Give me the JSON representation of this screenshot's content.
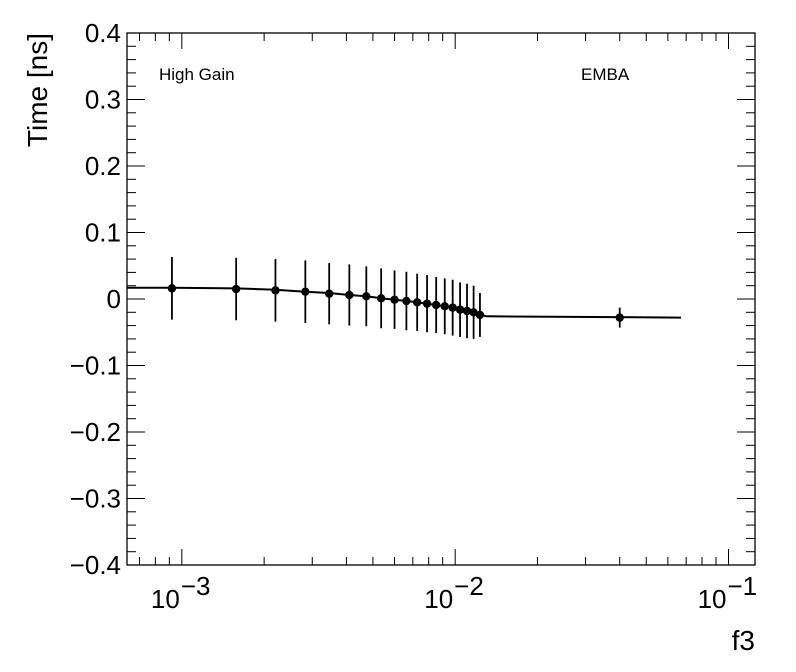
{
  "chart_data": {
    "type": "scatter",
    "xlabel": "f3",
    "ylabel": "Time [ns]",
    "xscale": "log",
    "xlim": [
      0.00063,
      0.125
    ],
    "ylim": [
      -0.4,
      0.4
    ],
    "grid": false,
    "annotations": [
      "High Gain",
      "EMBA"
    ],
    "x_tick_labels": [
      {
        "base": "10",
        "exp": "−3",
        "value": 0.001
      },
      {
        "base": "10",
        "exp": "−2",
        "value": 0.01
      },
      {
        "base": "10",
        "exp": "−1",
        "value": 0.1
      }
    ],
    "y_tick_labels": [
      "0.4",
      "0.3",
      "0.2",
      "0.1",
      "0",
      "−0.1",
      "−0.2",
      "−0.3",
      "−0.4"
    ],
    "y_tick_values": [
      0.4,
      0.3,
      0.2,
      0.1,
      0,
      -0.1,
      -0.2,
      -0.3,
      -0.4
    ],
    "points": [
      {
        "x": 0.00092,
        "y": 0.016,
        "err": 0.047
      },
      {
        "x": 0.00158,
        "y": 0.015,
        "err": 0.047
      },
      {
        "x": 0.0022,
        "y": 0.013,
        "err": 0.047
      },
      {
        "x": 0.00283,
        "y": 0.011,
        "err": 0.047
      },
      {
        "x": 0.00346,
        "y": 0.008,
        "err": 0.046
      },
      {
        "x": 0.0041,
        "y": 0.006,
        "err": 0.046
      },
      {
        "x": 0.00473,
        "y": 0.004,
        "err": 0.045
      },
      {
        "x": 0.00536,
        "y": 0.001,
        "err": 0.045
      },
      {
        "x": 0.006,
        "y": -0.001,
        "err": 0.044
      },
      {
        "x": 0.00663,
        "y": -0.003,
        "err": 0.044
      },
      {
        "x": 0.00726,
        "y": -0.005,
        "err": 0.043
      },
      {
        "x": 0.00789,
        "y": -0.007,
        "err": 0.043
      },
      {
        "x": 0.00852,
        "y": -0.009,
        "err": 0.042
      },
      {
        "x": 0.00916,
        "y": -0.011,
        "err": 0.042
      },
      {
        "x": 0.00979,
        "y": -0.013,
        "err": 0.042
      },
      {
        "x": 0.01042,
        "y": -0.016,
        "err": 0.041
      },
      {
        "x": 0.01105,
        "y": -0.018,
        "err": 0.041
      },
      {
        "x": 0.01168,
        "y": -0.02,
        "err": 0.04
      },
      {
        "x": 0.01232,
        "y": -0.024,
        "err": 0.033
      },
      {
        "x": 0.04,
        "y": -0.028,
        "err": 0.015
      }
    ],
    "fit_line": [
      {
        "x": 0.00063,
        "y": 0.017
      },
      {
        "x": 0.00092,
        "y": 0.017
      },
      {
        "x": 0.00158,
        "y": 0.016
      },
      {
        "x": 0.0022,
        "y": 0.014
      },
      {
        "x": 0.00283,
        "y": 0.011
      },
      {
        "x": 0.00346,
        "y": 0.009
      },
      {
        "x": 0.0041,
        "y": 0.006
      },
      {
        "x": 0.00473,
        "y": 0.004
      },
      {
        "x": 0.00536,
        "y": 0.001
      },
      {
        "x": 0.006,
        "y": -0.001
      },
      {
        "x": 0.00663,
        "y": -0.003
      },
      {
        "x": 0.00726,
        "y": -0.005
      },
      {
        "x": 0.00789,
        "y": -0.007
      },
      {
        "x": 0.00852,
        "y": -0.009
      },
      {
        "x": 0.00916,
        "y": -0.011
      },
      {
        "x": 0.00979,
        "y": -0.014
      },
      {
        "x": 0.01042,
        "y": -0.016
      },
      {
        "x": 0.01105,
        "y": -0.019
      },
      {
        "x": 0.01168,
        "y": -0.021
      },
      {
        "x": 0.013,
        "y": -0.026
      },
      {
        "x": 0.067,
        "y": -0.028
      }
    ]
  }
}
